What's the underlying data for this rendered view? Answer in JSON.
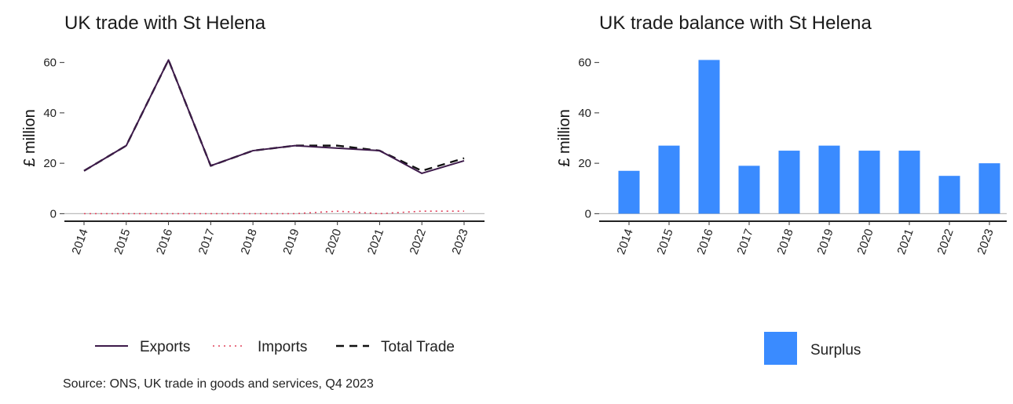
{
  "chart_data": [
    {
      "type": "line",
      "title": "UK trade with St Helena",
      "ylabel": "£ million",
      "xlabel": "",
      "x": [
        "2014",
        "2015",
        "2016",
        "2017",
        "2018",
        "2019",
        "2020",
        "2021",
        "2022",
        "2023"
      ],
      "y_ticks": [
        0,
        20,
        40,
        60
      ],
      "ylim": [
        -3,
        63
      ],
      "series": [
        {
          "name": "Exports",
          "values": [
            17,
            27,
            61,
            19,
            25,
            27,
            26,
            25,
            16,
            21
          ],
          "color": "#3d1a4a",
          "style": "solid"
        },
        {
          "name": "Imports",
          "values": [
            0,
            0,
            0,
            0,
            0,
            0,
            1,
            0,
            1,
            1
          ],
          "color": "#e0405a",
          "style": "dotted"
        },
        {
          "name": "Total Trade",
          "values": [
            17,
            27,
            61,
            19,
            25,
            27,
            27,
            25,
            17,
            22
          ],
          "color": "#111111",
          "style": "dashed"
        }
      ],
      "legend_position": "bottom"
    },
    {
      "type": "bar",
      "title": "UK trade balance with St Helena",
      "ylabel": "£ million",
      "xlabel": "",
      "categories": [
        "2014",
        "2015",
        "2016",
        "2017",
        "2018",
        "2019",
        "2020",
        "2021",
        "2022",
        "2023"
      ],
      "y_ticks": [
        0,
        20,
        40,
        60
      ],
      "ylim": [
        -3,
        63
      ],
      "series": [
        {
          "name": "Surplus",
          "values": [
            17,
            27,
            61,
            19,
            25,
            27,
            25,
            25,
            15,
            20
          ],
          "color": "#3a8bff"
        }
      ],
      "legend_position": "bottom"
    }
  ],
  "source": "Source: ONS, UK trade in goods and services, Q4 2023"
}
